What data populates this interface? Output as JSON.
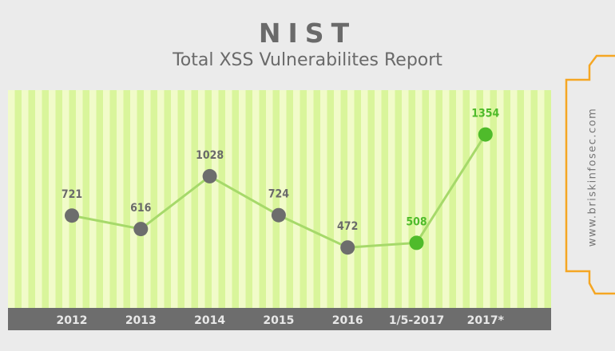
{
  "header": {
    "title": "NIST",
    "subtitle": "Total XSS Vulnerabilites Report"
  },
  "side_banner": {
    "text": "www.briskinfosec.com",
    "stroke_color": "#f5a623"
  },
  "colors": {
    "stripe_light": "#f1fbc9",
    "stripe_dark": "#d9f59b",
    "axis_band": "#6d6d6d",
    "line": "#a6d96a",
    "marker_gray": "#6d6d6d",
    "marker_green": "#4fbb2b",
    "label_gray": "#6a6a6a",
    "label_green": "#4fbb2b",
    "tick_label": "#e8e8e8"
  },
  "chart_data": {
    "type": "line",
    "title": "Total XSS Vulnerabilites Report",
    "xlabel": "",
    "ylabel": "",
    "categories": [
      "2012",
      "2013",
      "2014",
      "2015",
      "2016",
      "1/5-2017",
      "2017*"
    ],
    "series": [
      {
        "values": [
          721,
          616,
          1028,
          724,
          472,
          508,
          1354
        ],
        "highlight": [
          false,
          false,
          false,
          false,
          false,
          true,
          true
        ]
      }
    ],
    "data_labels": [
      "721",
      "616",
      "1028",
      "724",
      "472",
      "508",
      "1354"
    ],
    "ylim": [
      0,
      1700
    ],
    "grid": false,
    "legend": "none"
  }
}
